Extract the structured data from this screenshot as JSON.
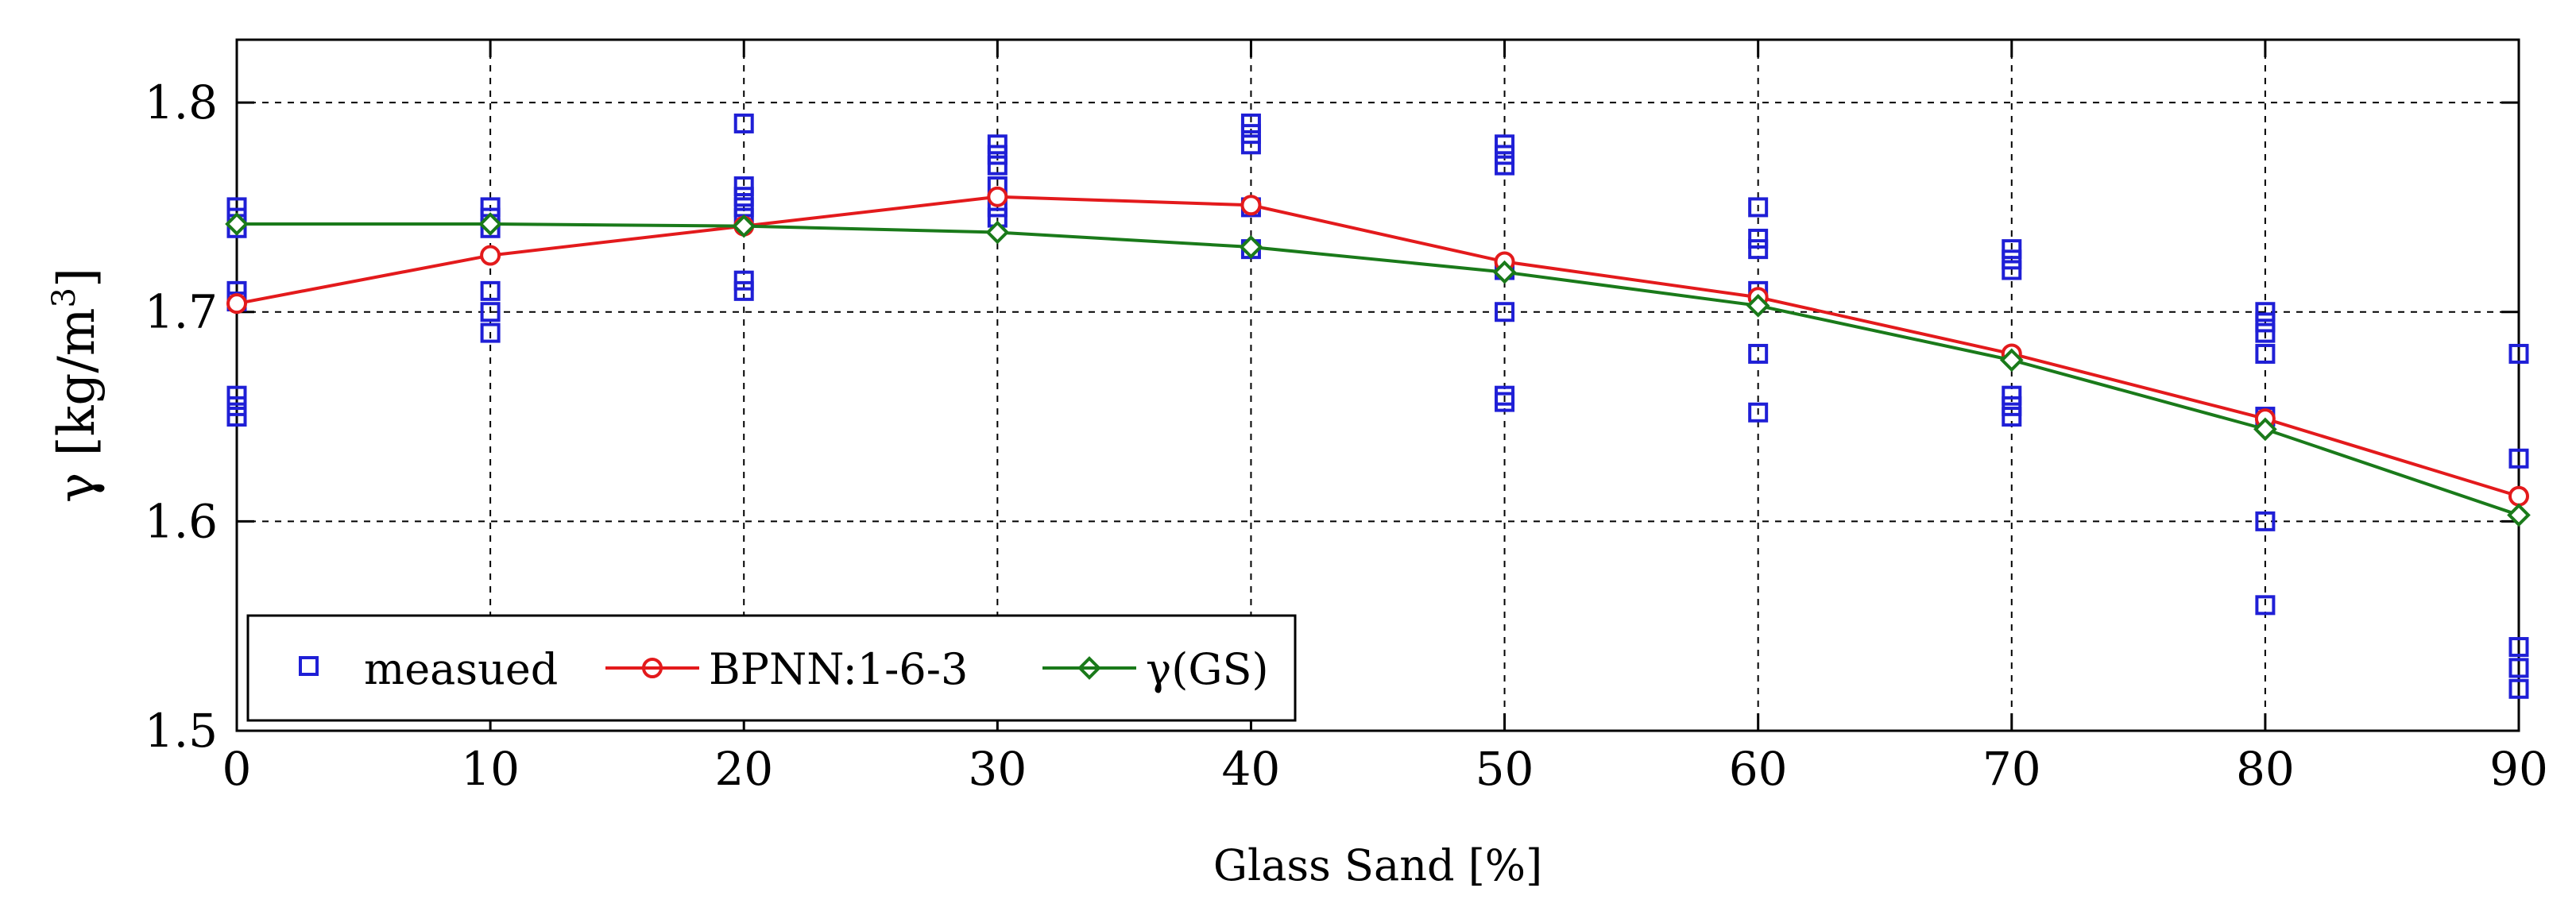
{
  "chart_data": {
    "type": "line",
    "title": "",
    "xlabel": "Glass Sand [%]",
    "ylabel": {
      "prefix": "γ [kg/m",
      "sup": "3",
      "suffix": "]"
    },
    "xlim": [
      0,
      90
    ],
    "ylim": [
      1.5,
      1.83
    ],
    "xticks": [
      0,
      10,
      20,
      30,
      40,
      50,
      60,
      70,
      80,
      90
    ],
    "xtick_labels": [
      "0",
      "10",
      "20",
      "30",
      "40",
      "50",
      "60",
      "70",
      "80",
      "90"
    ],
    "yticks": [
      1.5,
      1.6,
      1.7,
      1.8
    ],
    "ytick_labels": [
      "1.5",
      "1.6",
      "1.7",
      "1.8"
    ],
    "grid": true,
    "legend_position": "bottom-left",
    "series": [
      {
        "name": "measued",
        "kind": "scatter",
        "marker": "square",
        "color": "#1f1fd6",
        "points": [
          [
            0,
            1.75
          ],
          [
            0,
            1.745
          ],
          [
            0,
            1.74
          ],
          [
            0,
            1.71
          ],
          [
            0,
            1.705
          ],
          [
            0,
            1.66
          ],
          [
            0,
            1.655
          ],
          [
            0,
            1.65
          ],
          [
            10,
            1.75
          ],
          [
            10,
            1.745
          ],
          [
            10,
            1.74
          ],
          [
            10,
            1.71
          ],
          [
            10,
            1.7
          ],
          [
            10,
            1.69
          ],
          [
            20,
            1.79
          ],
          [
            20,
            1.76
          ],
          [
            20,
            1.755
          ],
          [
            20,
            1.75
          ],
          [
            20,
            1.745
          ],
          [
            20,
            1.715
          ],
          [
            20,
            1.71
          ],
          [
            30,
            1.78
          ],
          [
            30,
            1.775
          ],
          [
            30,
            1.77
          ],
          [
            30,
            1.76
          ],
          [
            30,
            1.75
          ],
          [
            30,
            1.745
          ],
          [
            40,
            1.79
          ],
          [
            40,
            1.785
          ],
          [
            40,
            1.78
          ],
          [
            40,
            1.75
          ],
          [
            40,
            1.73
          ],
          [
            50,
            1.78
          ],
          [
            50,
            1.775
          ],
          [
            50,
            1.77
          ],
          [
            50,
            1.72
          ],
          [
            50,
            1.7
          ],
          [
            50,
            1.66
          ],
          [
            50,
            1.657
          ],
          [
            60,
            1.75
          ],
          [
            60,
            1.735
          ],
          [
            60,
            1.73
          ],
          [
            60,
            1.71
          ],
          [
            60,
            1.68
          ],
          [
            60,
            1.652
          ],
          [
            70,
            1.73
          ],
          [
            70,
            1.725
          ],
          [
            70,
            1.72
          ],
          [
            70,
            1.66
          ],
          [
            70,
            1.655
          ],
          [
            70,
            1.65
          ],
          [
            80,
            1.7
          ],
          [
            80,
            1.695
          ],
          [
            80,
            1.69
          ],
          [
            80,
            1.68
          ],
          [
            80,
            1.65
          ],
          [
            80,
            1.6
          ],
          [
            80,
            1.56
          ],
          [
            90,
            1.68
          ],
          [
            90,
            1.63
          ],
          [
            90,
            1.54
          ],
          [
            90,
            1.53
          ],
          [
            90,
            1.52
          ]
        ]
      },
      {
        "name": "BPNN:1-6-3",
        "kind": "line",
        "marker": "circle",
        "color": "#e31a1c",
        "x": [
          0,
          10,
          20,
          30,
          40,
          50,
          60,
          70,
          80,
          90
        ],
        "y": [
          1.704,
          1.727,
          1.741,
          1.755,
          1.751,
          1.724,
          1.707,
          1.68,
          1.649,
          1.612
        ]
      },
      {
        "name": "γ(GS)",
        "kind": "line",
        "marker": "diamond",
        "color": "#1a7a1a",
        "x": [
          0,
          10,
          20,
          30,
          40,
          50,
          60,
          70,
          80,
          90
        ],
        "y": [
          1.742,
          1.742,
          1.741,
          1.738,
          1.731,
          1.719,
          1.703,
          1.677,
          1.644,
          1.603
        ]
      }
    ]
  }
}
